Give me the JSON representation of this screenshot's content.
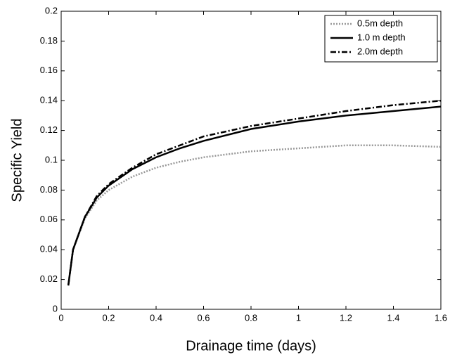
{
  "chart_data": {
    "type": "line",
    "x_label": "Drainage time (days)",
    "y_label": "Specific Yield",
    "x": [
      0.03,
      0.05,
      0.1,
      0.15,
      0.2,
      0.3,
      0.4,
      0.5,
      0.6,
      0.8,
      1.0,
      1.2,
      1.4,
      1.6
    ],
    "series": [
      {
        "name": "0.5m depth",
        "color": "#999999",
        "style": "dotted",
        "values": [
          0.016,
          0.04,
          0.061,
          0.073,
          0.08,
          0.089,
          0.095,
          0.099,
          0.102,
          0.106,
          0.108,
          0.11,
          0.11,
          0.109
        ]
      },
      {
        "name": "1.0 m depth",
        "color": "#000000",
        "style": "solid",
        "values": [
          0.016,
          0.04,
          0.062,
          0.075,
          0.083,
          0.094,
          0.102,
          0.108,
          0.113,
          0.121,
          0.126,
          0.13,
          0.133,
          0.136
        ]
      },
      {
        "name": "2.0m depth",
        "color": "#000000",
        "style": "dashdot",
        "values": [
          0.016,
          0.04,
          0.062,
          0.076,
          0.084,
          0.095,
          0.104,
          0.11,
          0.116,
          0.123,
          0.128,
          0.133,
          0.137,
          0.14
        ]
      }
    ],
    "xlim": [
      0,
      1.6
    ],
    "xticks": [
      0,
      0.2,
      0.4,
      0.6,
      0.8,
      1,
      1.2,
      1.4,
      1.6
    ],
    "ylim": [
      0,
      0.2
    ],
    "yticks": [
      0,
      0.02,
      0.04,
      0.06,
      0.08,
      0.1,
      0.12,
      0.14,
      0.16,
      0.18,
      0.2
    ],
    "grid": false,
    "legend": "upper right"
  }
}
